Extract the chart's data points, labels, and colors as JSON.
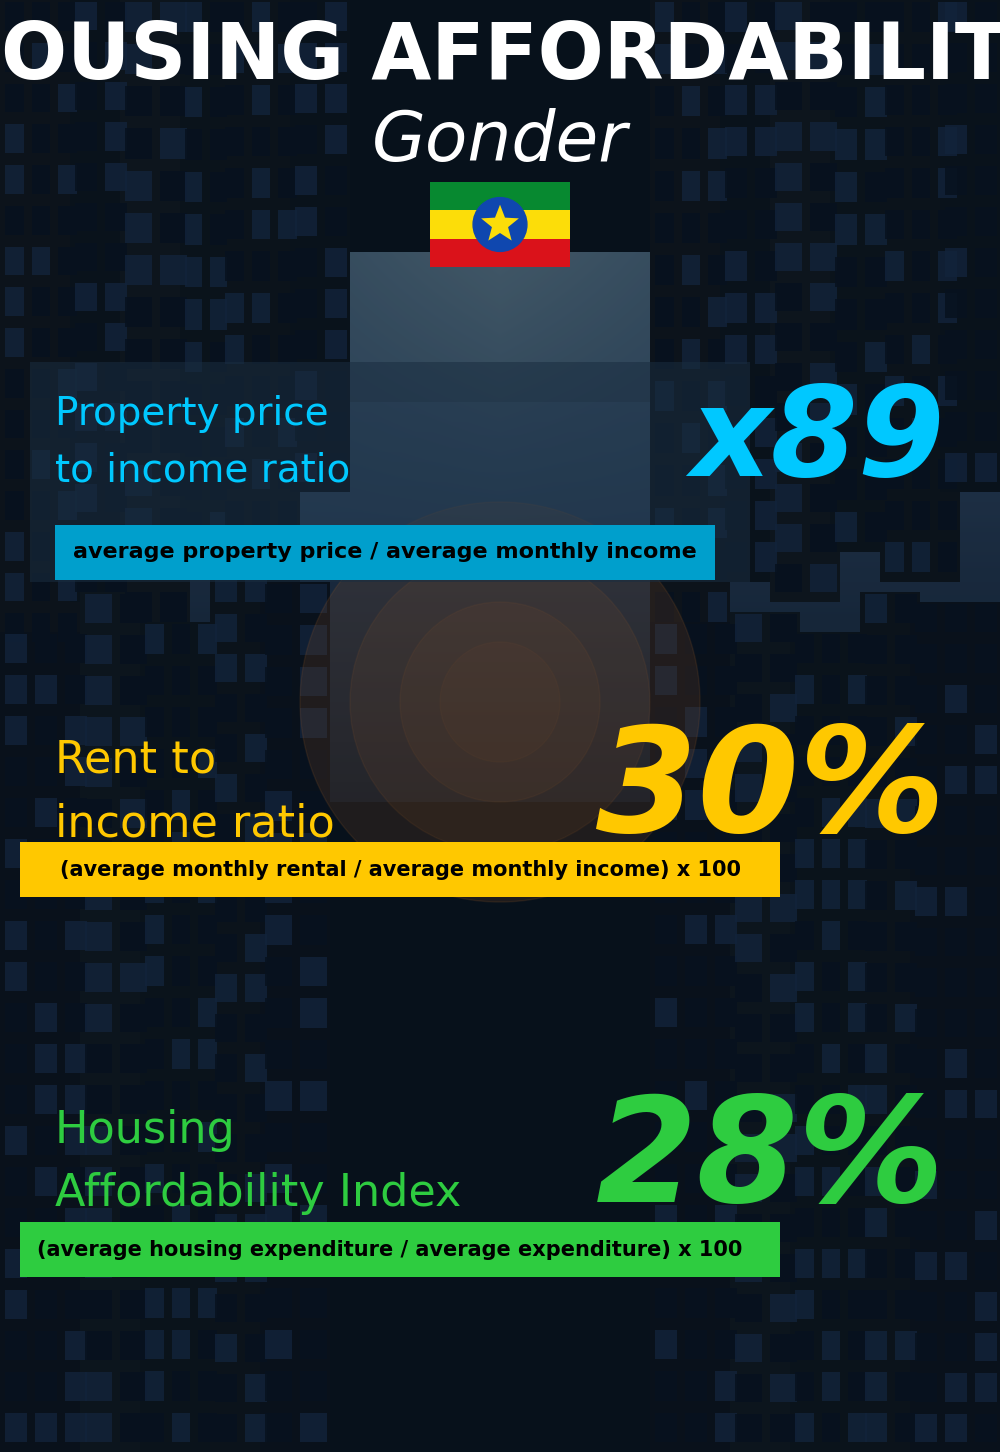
{
  "title_line1": "HOUSING AFFORDABILITY",
  "title_line2": "Gonder",
  "bg_color": "#050d15",
  "section1_label": "Property price\nto income ratio",
  "section1_value": "x89",
  "section1_label_color": "#00c8ff",
  "section1_value_color": "#00c8ff",
  "section1_banner": "average property price / average monthly income",
  "section1_banner_bg": "#009fcc",
  "section2_label": "Rent to\nincome ratio",
  "section2_value": "30%",
  "section2_label_color": "#ffc800",
  "section2_value_color": "#ffc800",
  "section2_banner": "(average monthly rental / average monthly income) x 100",
  "section2_banner_bg": "#ffc800",
  "section3_label": "Housing\nAffordability Index",
  "section3_value": "28%",
  "section3_label_color": "#2ecc40",
  "section3_value_color": "#2ecc40",
  "section3_banner": "(average housing expenditure / average expenditure) x 100",
  "section3_banner_bg": "#2ecc40",
  "title_color": "#ffffff",
  "subtitle_color": "#ffffff",
  "flag_green": "#078930",
  "flag_yellow": "#FCDD09",
  "flag_red": "#DA121A",
  "flag_blue": "#0F47AF",
  "flag_star": "#FCDD09"
}
